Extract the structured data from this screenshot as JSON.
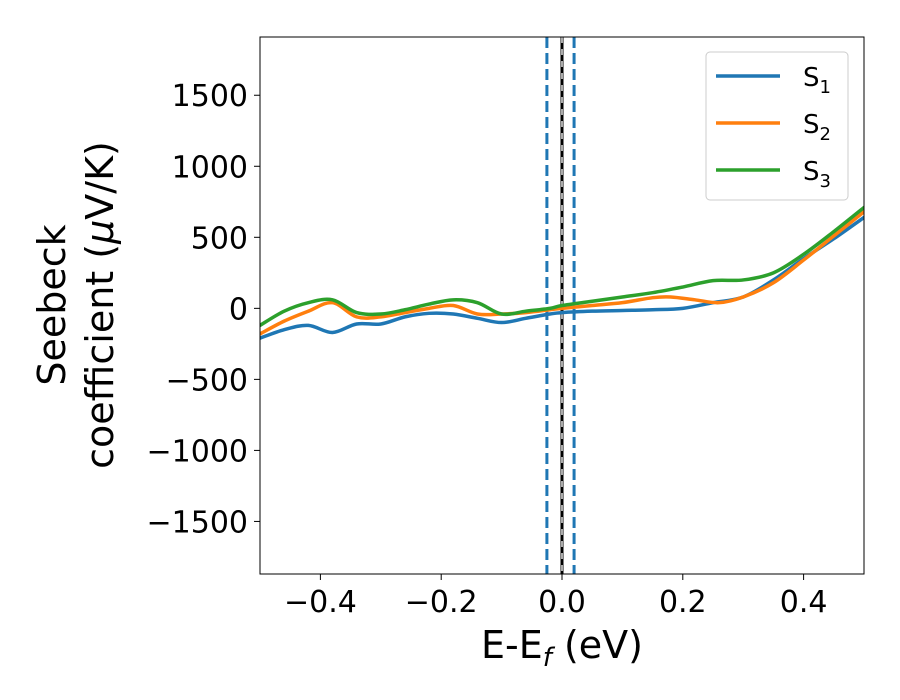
{
  "chart_data": {
    "type": "line",
    "xlabel": "E-E",
    "xlabel_sub": "f",
    "xlabel_unit": " (eV)",
    "ylabel_line1": "Seebeck",
    "ylabel_line2": "coefficient  (",
    "ylabel_mu": "μ",
    "ylabel_unit_end": "V/K)",
    "xlim": [
      -0.5,
      0.5
    ],
    "ylim": [
      -1870,
      1910
    ],
    "xticks": [
      -0.4,
      -0.2,
      0.0,
      0.2,
      0.4
    ],
    "xtick_labels": [
      "−0.4",
      "−0.2",
      "0.0",
      "0.2",
      "0.4"
    ],
    "yticks": [
      -1500,
      -1000,
      -500,
      0,
      500,
      1000,
      1500
    ],
    "ytick_labels": [
      "−1500",
      "−1000",
      "−500",
      "0",
      "500",
      "1000",
      "1500"
    ],
    "grid": false,
    "legend_position": "top-right",
    "vlines": [
      {
        "x": -0.025,
        "style": "dashed",
        "color": "#1f77b4"
      },
      {
        "x": 0.02,
        "style": "dashed",
        "color": "#1f77b4"
      },
      {
        "x": 0.0,
        "style": "solid",
        "color": "#000000"
      },
      {
        "x": 0.0,
        "style": "dashed",
        "color": "#aaaaaa"
      }
    ],
    "series": [
      {
        "name": "S",
        "sub": "1",
        "color": "#1f77b4",
        "x": [
          -0.5,
          -0.46,
          -0.42,
          -0.38,
          -0.34,
          -0.3,
          -0.26,
          -0.22,
          -0.18,
          -0.14,
          -0.1,
          -0.06,
          -0.02,
          0.0,
          0.05,
          0.1,
          0.15,
          0.2,
          0.25,
          0.3,
          0.35,
          0.4,
          0.45,
          0.5
        ],
        "y": [
          -210,
          -150,
          -120,
          -170,
          -110,
          -110,
          -60,
          -35,
          -40,
          -70,
          -100,
          -70,
          -40,
          -30,
          -20,
          -15,
          -10,
          0,
          40,
          80,
          200,
          350,
          490,
          640
        ]
      },
      {
        "name": "S",
        "sub": "2",
        "color": "#ff7f0e",
        "x": [
          -0.5,
          -0.46,
          -0.42,
          -0.38,
          -0.34,
          -0.3,
          -0.26,
          -0.22,
          -0.18,
          -0.14,
          -0.1,
          -0.06,
          -0.02,
          0.0,
          0.05,
          0.1,
          0.15,
          0.18,
          0.22,
          0.26,
          0.3,
          0.35,
          0.4,
          0.45,
          0.5
        ],
        "y": [
          -180,
          -90,
          -20,
          40,
          -60,
          -60,
          -30,
          0,
          20,
          -40,
          -40,
          -30,
          -10,
          0,
          20,
          40,
          75,
          80,
          60,
          40,
          80,
          180,
          340,
          510,
          680
        ]
      },
      {
        "name": "S",
        "sub": "3",
        "color": "#2ca02c",
        "x": [
          -0.5,
          -0.46,
          -0.42,
          -0.38,
          -0.34,
          -0.3,
          -0.26,
          -0.22,
          -0.18,
          -0.14,
          -0.1,
          -0.06,
          -0.02,
          0.0,
          0.05,
          0.1,
          0.15,
          0.2,
          0.25,
          0.3,
          0.35,
          0.4,
          0.45,
          0.5
        ],
        "y": [
          -120,
          -20,
          40,
          60,
          -30,
          -40,
          -10,
          30,
          60,
          40,
          -40,
          -20,
          0,
          20,
          50,
          80,
          110,
          150,
          195,
          200,
          250,
          380,
          540,
          710
        ]
      }
    ]
  }
}
